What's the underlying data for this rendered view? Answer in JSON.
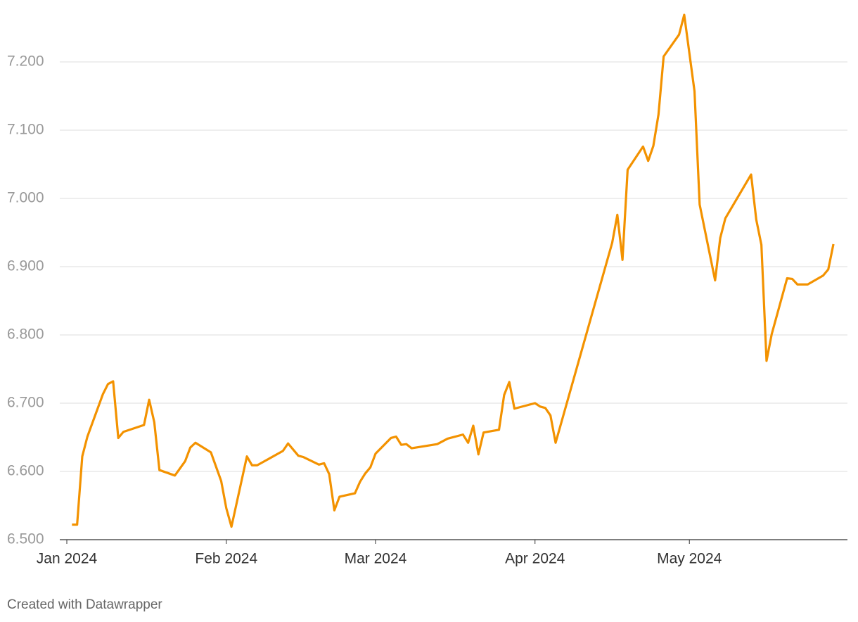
{
  "chart_data": {
    "type": "line",
    "x": [
      2,
      3,
      4,
      5,
      8,
      9,
      10,
      11,
      12,
      16,
      17,
      18,
      19,
      22,
      24,
      25,
      26,
      29,
      31,
      32,
      33,
      36,
      37,
      38,
      43,
      44,
      46,
      47,
      50,
      51,
      52,
      53,
      54,
      57,
      58,
      59,
      60,
      61,
      64,
      65,
      66,
      67,
      68,
      73,
      75,
      78,
      79,
      80,
      81,
      82,
      85,
      86,
      87,
      88,
      92,
      93,
      94,
      95,
      96,
      107,
      108,
      109,
      110,
      113,
      114,
      115,
      116,
      117,
      120,
      121,
      123,
      124,
      127,
      128,
      129,
      134,
      135,
      136,
      137,
      138,
      141,
      142,
      143,
      145,
      148,
      149,
      150
    ],
    "series": [
      {
        "color": "#f39200",
        "values": [
          6.522,
          6.522,
          6.622,
          6.651,
          6.713,
          6.728,
          6.732,
          6.649,
          6.658,
          6.668,
          6.705,
          6.672,
          6.602,
          6.594,
          6.615,
          6.635,
          6.642,
          6.628,
          6.586,
          6.546,
          6.519,
          6.622,
          6.609,
          6.609,
          6.63,
          6.641,
          6.623,
          6.621,
          6.61,
          6.612,
          6.596,
          6.543,
          6.563,
          6.568,
          6.585,
          6.597,
          6.606,
          6.626,
          6.649,
          6.651,
          6.639,
          6.64,
          6.634,
          6.64,
          6.648,
          6.654,
          6.642,
          6.667,
          6.625,
          6.657,
          6.661,
          6.712,
          6.731,
          6.692,
          6.7,
          6.695,
          6.693,
          6.682,
          6.642,
          6.935,
          6.976,
          6.91,
          7.042,
          7.076,
          7.055,
          7.077,
          7.123,
          7.208,
          7.24,
          7.269,
          7.157,
          6.991,
          6.88,
          6.942,
          6.971,
          7.035,
          6.969,
          6.932,
          6.762,
          6.801,
          6.883,
          6.882,
          6.874,
          6.874,
          6.887,
          6.896,
          6.933
        ]
      }
    ],
    "xlim": [
      0,
      153
    ],
    "xticks": [
      {
        "value": 1,
        "label": "Jan 2024"
      },
      {
        "value": 32,
        "label": "Feb 2024"
      },
      {
        "value": 61,
        "label": "Mar 2024"
      },
      {
        "value": 92,
        "label": "Apr 2024"
      },
      {
        "value": 122,
        "label": "May 2024"
      }
    ],
    "ylim": [
      6.5,
      7.2
    ],
    "yticks": [
      {
        "value": 6.5,
        "label": "6.500"
      },
      {
        "value": 6.6,
        "label": "6.600"
      },
      {
        "value": 6.7,
        "label": "6.700"
      },
      {
        "value": 6.8,
        "label": "6.800"
      },
      {
        "value": 6.9,
        "label": "6.900"
      },
      {
        "value": 7.0,
        "label": "7.000"
      },
      {
        "value": 7.1,
        "label": "7.100"
      },
      {
        "value": 7.2,
        "label": "7.200"
      }
    ],
    "grid": true
  },
  "footer": "Created with Datawrapper"
}
